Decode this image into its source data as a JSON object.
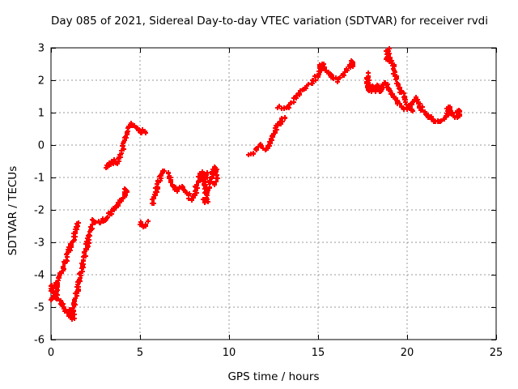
{
  "page": {
    "background": "#ffffff",
    "kind": "gnuplot scatter chart"
  },
  "chart_data": {
    "type": "scatter",
    "title": "Day 085 of 2021, Sidereal Day-to-day VTEC variation (SDTVAR) for receiver rvdi",
    "xlabel": "GPS time / hours",
    "ylabel": "SDTVAR / TECUs",
    "xlim": [
      0,
      25
    ],
    "ylim": [
      -6,
      3
    ],
    "xticks": [
      0,
      5,
      10,
      15,
      20,
      25
    ],
    "yticks": [
      -6,
      -5,
      -4,
      -3,
      -2,
      -1,
      0,
      1,
      2,
      3
    ],
    "grid": true,
    "legend_position": "none",
    "marker": "plus",
    "marker_size": 7,
    "marker_color": "#ff0000",
    "grid_color": "#9a9a9a",
    "axis_color": "#000000",
    "x_units": "hours",
    "y_units": "TECUs",
    "segments": [
      {
        "name": "descent-to-dip",
        "jitter": 0.055,
        "points": [
          [
            0.05,
            -4.45
          ],
          [
            0.35,
            -4.68
          ],
          [
            0.65,
            -4.92
          ],
          [
            0.95,
            -5.18
          ],
          [
            1.15,
            -5.3
          ]
        ]
      },
      {
        "name": "rise-branch-a",
        "jitter": 0.05,
        "points": [
          [
            0.3,
            -4.25
          ],
          [
            0.6,
            -3.9
          ],
          [
            0.9,
            -3.45
          ],
          [
            1.15,
            -3.0
          ],
          [
            1.4,
            -2.6
          ],
          [
            1.55,
            -2.4
          ]
        ]
      },
      {
        "name": "rise-branch-b",
        "jitter": 0.05,
        "points": [
          [
            1.15,
            -5.3
          ],
          [
            1.45,
            -4.55
          ],
          [
            1.75,
            -3.75
          ],
          [
            2.05,
            -3.0
          ],
          [
            2.3,
            -2.45
          ]
        ]
      },
      {
        "name": "plateau",
        "jitter": 0.06,
        "points": [
          [
            2.3,
            -2.28
          ],
          [
            2.55,
            -2.4
          ],
          [
            2.8,
            -2.35
          ],
          [
            3.05,
            -2.28
          ],
          [
            3.3,
            -2.15
          ],
          [
            3.6,
            -1.95
          ],
          [
            3.9,
            -1.75
          ],
          [
            4.2,
            -1.55
          ]
        ]
      },
      {
        "name": "midnight-peak",
        "jitter": 0.05,
        "points": [
          [
            3.1,
            -0.72
          ],
          [
            3.3,
            -0.55
          ],
          [
            3.5,
            -0.48
          ],
          [
            3.65,
            -0.6
          ],
          [
            3.8,
            -0.5
          ],
          [
            3.95,
            -0.25
          ],
          [
            4.1,
            0.05
          ],
          [
            4.25,
            0.35
          ],
          [
            4.4,
            0.58
          ],
          [
            4.5,
            0.66
          ],
          [
            4.65,
            0.55
          ],
          [
            4.85,
            0.48
          ],
          [
            5.05,
            0.45
          ],
          [
            5.3,
            0.38
          ]
        ]
      },
      {
        "name": "low-cluster-5h",
        "jitter": 0.1,
        "points": [
          [
            5.0,
            -2.38
          ],
          [
            5.15,
            -2.52
          ],
          [
            5.3,
            -2.45
          ],
          [
            5.45,
            -2.35
          ]
        ]
      },
      {
        "name": "morning-w",
        "jitter": 0.055,
        "points": [
          [
            5.7,
            -1.8
          ],
          [
            5.9,
            -1.42
          ],
          [
            6.1,
            -1.02
          ],
          [
            6.3,
            -0.8
          ],
          [
            6.5,
            -0.88
          ],
          [
            6.7,
            -1.05
          ],
          [
            6.9,
            -1.3
          ],
          [
            7.1,
            -1.42
          ],
          [
            7.25,
            -1.3
          ],
          [
            7.45,
            -1.32
          ],
          [
            7.65,
            -1.5
          ],
          [
            7.85,
            -1.65
          ],
          [
            8.05,
            -1.55
          ],
          [
            8.25,
            -1.15
          ],
          [
            8.45,
            -0.88
          ],
          [
            8.6,
            -1.15
          ],
          [
            8.75,
            -1.5
          ],
          [
            8.87,
            -1.25
          ],
          [
            9.0,
            -1.0
          ],
          [
            9.15,
            -0.82
          ],
          [
            9.3,
            -0.75
          ]
        ]
      },
      {
        "name": "noon-wiggle",
        "jitter": 0.05,
        "points": [
          [
            11.15,
            -0.25
          ],
          [
            11.4,
            -0.2
          ],
          [
            11.6,
            -0.05
          ],
          [
            11.8,
            0.0
          ],
          [
            12.0,
            -0.1
          ],
          [
            12.2,
            -0.08
          ],
          [
            12.4,
            0.15
          ],
          [
            12.6,
            0.45
          ],
          [
            12.8,
            0.62
          ],
          [
            13.0,
            0.78
          ],
          [
            13.15,
            0.82
          ]
        ]
      },
      {
        "name": "afternoon-arc",
        "jitter": 0.055,
        "points": [
          [
            12.8,
            1.15
          ],
          [
            13.05,
            1.18
          ],
          [
            13.25,
            1.14
          ],
          [
            13.5,
            1.32
          ],
          [
            13.8,
            1.5
          ],
          [
            14.1,
            1.68
          ],
          [
            14.4,
            1.82
          ],
          [
            14.7,
            1.95
          ],
          [
            14.95,
            2.1
          ],
          [
            15.1,
            2.3
          ],
          [
            15.25,
            2.45
          ],
          [
            15.4,
            2.35
          ],
          [
            15.6,
            2.2
          ],
          [
            15.85,
            2.08
          ],
          [
            16.05,
            2.0
          ],
          [
            16.3,
            2.12
          ],
          [
            16.55,
            2.3
          ],
          [
            16.75,
            2.42
          ],
          [
            16.95,
            2.55
          ]
        ]
      },
      {
        "name": "evening-drift",
        "jitter": 0.06,
        "points": [
          [
            17.75,
            1.95
          ],
          [
            17.95,
            1.8
          ],
          [
            18.2,
            1.72
          ],
          [
            18.45,
            1.68
          ],
          [
            18.62,
            1.75
          ],
          [
            18.78,
            1.95
          ],
          [
            18.95,
            1.75
          ],
          [
            19.15,
            1.55
          ],
          [
            19.4,
            1.35
          ],
          [
            19.65,
            1.2
          ],
          [
            19.9,
            1.12
          ],
          [
            20.1,
            1.15
          ],
          [
            20.3,
            1.3
          ],
          [
            20.5,
            1.45
          ]
        ]
      },
      {
        "name": "burst-descent",
        "jitter": 0.055,
        "points": [
          [
            18.9,
            2.92
          ],
          [
            19.05,
            2.6
          ],
          [
            19.2,
            2.42
          ],
          [
            19.4,
            2.08
          ],
          [
            19.6,
            1.75
          ],
          [
            19.8,
            1.5
          ],
          [
            20.0,
            1.28
          ],
          [
            20.2,
            1.12
          ],
          [
            20.32,
            1.06
          ]
        ]
      },
      {
        "name": "tail",
        "jitter": 0.05,
        "points": [
          [
            20.5,
            1.45
          ],
          [
            20.7,
            1.22
          ],
          [
            20.9,
            1.05
          ],
          [
            21.1,
            0.92
          ],
          [
            21.3,
            0.82
          ],
          [
            21.5,
            0.75
          ],
          [
            21.7,
            0.73
          ],
          [
            21.9,
            0.76
          ],
          [
            22.1,
            0.82
          ],
          [
            22.3,
            1.02
          ],
          [
            22.42,
            1.12
          ],
          [
            22.55,
            0.95
          ],
          [
            22.68,
            0.87
          ],
          [
            22.8,
            0.93
          ],
          [
            22.95,
            1.02
          ]
        ]
      }
    ],
    "clusters": [
      {
        "name": "start-blob",
        "t": [
          0.0,
          0.38
        ],
        "v": [
          -4.82,
          -4.3
        ],
        "n": 28
      },
      {
        "name": "dip-blob",
        "t": [
          0.95,
          1.32
        ],
        "v": [
          -5.4,
          -5.08
        ],
        "n": 14
      },
      {
        "name": "plateau-end-tick",
        "t": [
          4.12,
          4.3
        ],
        "v": [
          -1.72,
          -1.36
        ],
        "n": 9
      },
      {
        "name": "w-mid-spread",
        "t": [
          8.55,
          8.8
        ],
        "v": [
          -1.78,
          -0.85
        ],
        "n": 18
      },
      {
        "name": "w-end-spread",
        "t": [
          9.05,
          9.35
        ],
        "v": [
          -1.25,
          -0.68
        ],
        "n": 15
      },
      {
        "name": "peak-spread",
        "t": [
          15.08,
          15.32
        ],
        "v": [
          2.28,
          2.56
        ],
        "n": 9
      },
      {
        "name": "arc-end-tip",
        "t": [
          16.86,
          17.04
        ],
        "v": [
          2.4,
          2.62
        ],
        "n": 8
      },
      {
        "name": "evening-start-bar",
        "t": [
          17.68,
          17.88
        ],
        "v": [
          1.85,
          2.28
        ],
        "n": 13
      },
      {
        "name": "evening-blob",
        "t": [
          17.75,
          18.55
        ],
        "v": [
          1.6,
          1.87
        ],
        "n": 26
      },
      {
        "name": "burst-top",
        "t": [
          18.82,
          19.02
        ],
        "v": [
          2.58,
          2.97
        ],
        "n": 13
      },
      {
        "name": "tail-bump",
        "t": [
          22.24,
          22.46
        ],
        "v": [
          0.95,
          1.2
        ],
        "n": 8
      },
      {
        "name": "tail-end",
        "t": [
          22.75,
          23.0
        ],
        "v": [
          0.86,
          1.08
        ],
        "n": 10
      }
    ]
  }
}
